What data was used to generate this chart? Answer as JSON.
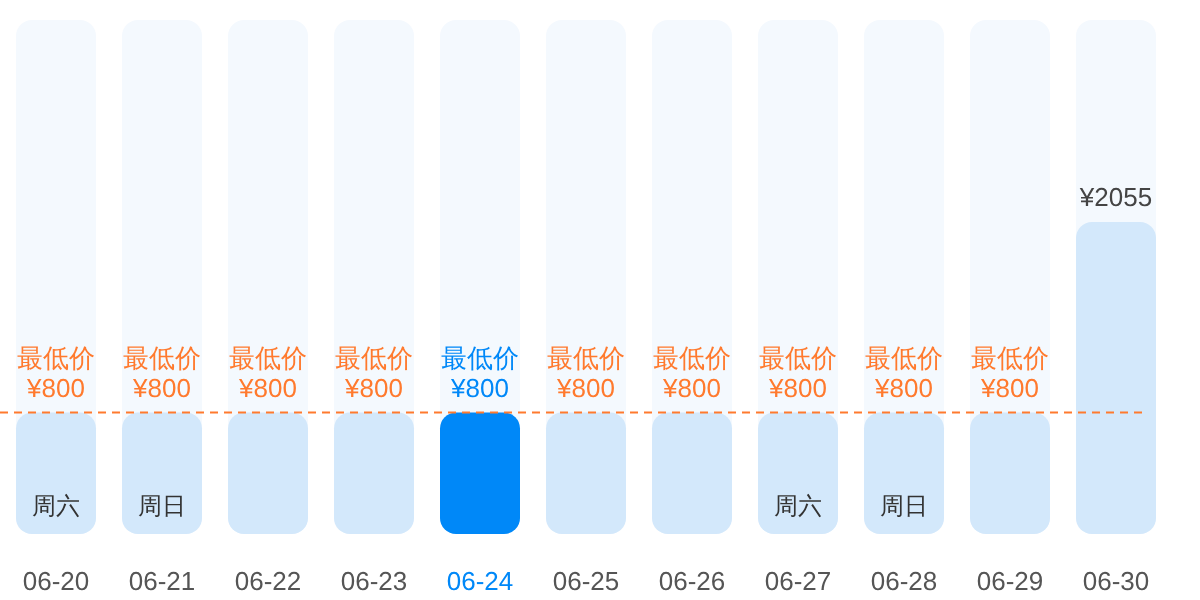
{
  "chart_data": {
    "type": "bar",
    "categories": [
      "06-20",
      "06-21",
      "06-22",
      "06-23",
      "06-24",
      "06-25",
      "06-26",
      "06-27",
      "06-28",
      "06-29",
      "06-30"
    ],
    "values": [
      800,
      800,
      800,
      800,
      800,
      800,
      800,
      800,
      800,
      800,
      2055
    ],
    "colors": [
      "#d3e8fb",
      "#d3e8fb",
      "#d3e8fb",
      "#d3e8fb",
      "#0088f8",
      "#d3e8fb",
      "#d3e8fb",
      "#d3e8fb",
      "#d3e8fb",
      "#d3e8fb",
      "#d3e8fb"
    ],
    "value_labels": [
      "最低价\n¥800",
      "最低价\n¥800",
      "最低价\n¥800",
      "最低价\n¥800",
      "最低价\n¥800",
      "最低价\n¥800",
      "最低价\n¥800",
      "最低价\n¥800",
      "最低价\n¥800",
      "最低价\n¥800",
      "¥2055"
    ],
    "tick_labels": "x",
    "ref_lines": [
      {
        "axis": "y",
        "value": 800,
        "color": "#ff7a2e",
        "line_style": "dashed"
      }
    ],
    "annotations": [
      "周六",
      "周日",
      "周六",
      "周日"
    ]
  }
}
